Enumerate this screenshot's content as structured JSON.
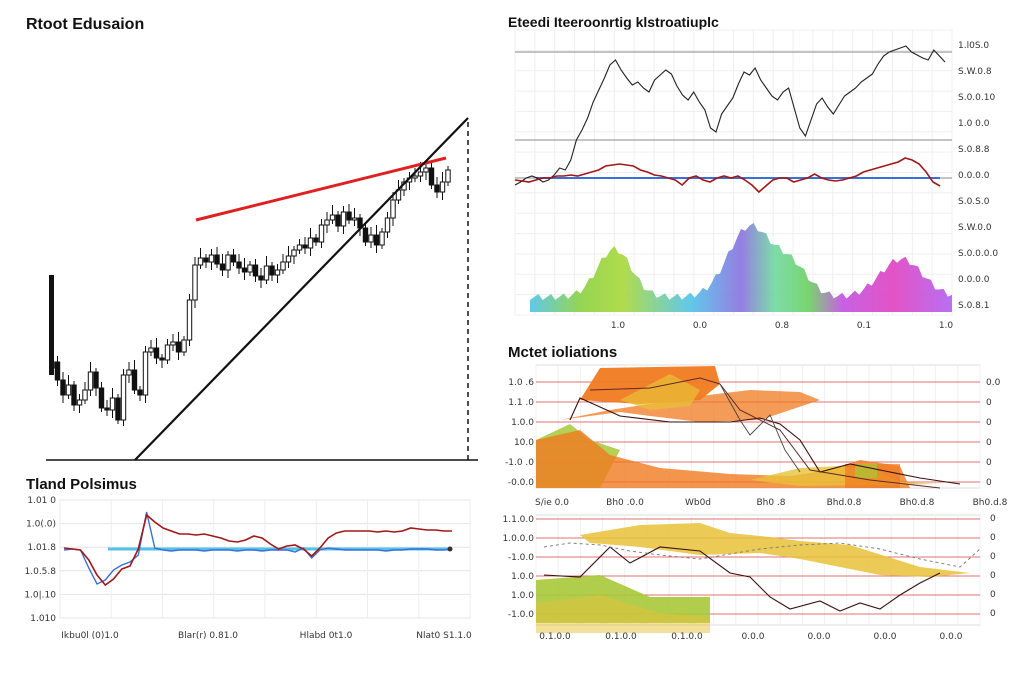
{
  "titles": {
    "top_left": "Rtoot Edusaion",
    "top_right": "Eteedi Iteeroonrtig klstroatiuplc",
    "mid_right": "Mctet ioliations",
    "bottom_left": "Tland Polsimus"
  },
  "colors": {
    "candle": "#111111",
    "trend_red": "#e02020",
    "trend_black": "#111111",
    "price_red": "#a01818",
    "price_blue": "#3a6fd8",
    "cyan": "#4fc3e8",
    "orange": "#f07a20",
    "yellow": "#e8c238",
    "green": "#a8c838",
    "grid_red": "#e07070"
  },
  "chart_data": [
    {
      "id": "main-candles",
      "type": "candlestick",
      "title": "Rtoot Edusaion",
      "closes": [
        362,
        380,
        395,
        385,
        405,
        400,
        390,
        372,
        388,
        408,
        410,
        398,
        420,
        375,
        370,
        390,
        395,
        352,
        348,
        358,
        360,
        345,
        342,
        352,
        340,
        300,
        265,
        258,
        262,
        255,
        264,
        270,
        255,
        262,
        268,
        272,
        265,
        276,
        280,
        266,
        275,
        270,
        262,
        256,
        250,
        245,
        248,
        238,
        242,
        225,
        220,
        215,
        226,
        212,
        220,
        218,
        228,
        242,
        235,
        245,
        232,
        218,
        200,
        190,
        182,
        178,
        176,
        172,
        168,
        185,
        192,
        182,
        170
      ]
    },
    {
      "id": "mid-left-lines",
      "type": "line",
      "title": "Tland Polsimus",
      "ytick_labels": [
        "1.01 0",
        "1.0(.0)",
        "1.01.8",
        "1.0.5.8",
        "1.0|.10",
        "1.010"
      ],
      "xtick_labels": [
        "Ikbu0l (0)1.0",
        "Blar(r) 0.81.0",
        "Hlabd 0t1.0",
        "Nlat0 S1.1.0"
      ],
      "red": [
        548,
        549,
        550,
        560,
        575,
        585,
        579,
        569,
        566,
        549,
        515,
        522,
        528,
        531,
        534,
        534,
        535,
        534,
        536,
        538,
        541,
        542,
        540,
        536,
        538,
        544,
        549,
        546,
        545,
        549,
        556,
        548,
        538,
        533,
        531,
        531,
        531,
        531,
        532,
        531,
        532,
        531,
        528,
        529,
        530,
        530,
        531,
        531
      ],
      "blue": [
        550,
        549,
        550,
        568,
        584,
        580,
        570,
        565,
        562,
        555,
        512,
        548,
        550,
        551,
        550,
        550,
        550,
        551,
        550,
        550,
        550,
        551,
        550,
        550,
        551,
        550,
        550,
        550,
        552,
        548,
        558,
        550,
        548,
        549,
        550,
        550,
        550,
        550,
        550,
        551,
        550,
        550,
        549,
        549,
        549,
        550,
        550,
        549
      ]
    },
    {
      "id": "top-right-composite",
      "type": "line",
      "title": "Eteedi Iteeroonrtig klstroatiuplc",
      "ytick_labels": [
        "1.l0S.0",
        "S.W.0.8",
        "S.0.0.10",
        "1.0 0.0",
        "S.0.8.8",
        "0.0.0.0",
        "S.0.S.0",
        "S.W.0.0",
        "S.0.0.0.0",
        "0.0.0.0",
        "S.0.8.1"
      ],
      "xtick_labels": [
        "1.0",
        "0.0",
        "0.8",
        "0.1",
        "1.0"
      ],
      "price": [
        185,
        182,
        178,
        176,
        178,
        182,
        180,
        175,
        168,
        170,
        160,
        140,
        130,
        118,
        102,
        90,
        78,
        65,
        60,
        70,
        78,
        85,
        82,
        88,
        92,
        80,
        75,
        70,
        74,
        86,
        95,
        100,
        92,
        102,
        110,
        128,
        132,
        114,
        106,
        98,
        84,
        72,
        75,
        68,
        80,
        88,
        96,
        100,
        92,
        88,
        108,
        128,
        136,
        120,
        104,
        98,
        107,
        114,
        105,
        96,
        92,
        88,
        82,
        78,
        74,
        64,
        56,
        52,
        50,
        48,
        46,
        52,
        55,
        58,
        60,
        50,
        56,
        62
      ],
      "indicator": [
        180,
        181,
        182,
        180,
        178,
        178,
        176,
        176,
        175,
        176,
        174,
        172,
        170,
        166,
        165,
        164,
        165,
        166,
        170,
        172,
        175,
        176,
        178,
        180,
        185,
        178,
        176,
        180,
        182,
        178,
        176,
        178,
        176,
        180,
        185,
        192,
        186,
        180,
        178,
        178,
        182,
        180,
        178,
        174,
        178,
        180,
        181,
        180,
        178,
        176,
        172,
        170,
        168,
        166,
        164,
        162,
        158,
        160,
        164,
        172,
        182,
        186
      ]
    },
    {
      "id": "mid-right-areas",
      "type": "area",
      "title": "Mctet ioliations",
      "ytick_labels": [
        "1.0 .6",
        "1.1 .0",
        "1.0.0",
        "10.0",
        "-1.0 .0",
        "-0.0.0"
      ],
      "right_tick_labels": [
        "0.0",
        "0",
        "0",
        "0",
        "0",
        "0"
      ],
      "xtick_labels": [
        "S/ie 0.0",
        "Bh0 .0.0",
        "Wb0d",
        "Bh0 .8",
        "Bhd.0.8",
        "Bh0.d.8",
        "Bh0.d.8"
      ]
    },
    {
      "id": "bottom-right-areas",
      "type": "area",
      "ytick_labels": [
        "1.1.0.0",
        "1.0.0.0",
        "-1.0.0",
        "1.0.0",
        "1.0.0",
        "-1.0.0"
      ],
      "right_tick_labels": [
        "0",
        "0",
        "0",
        "0",
        "0",
        "0"
      ],
      "xtick_labels": [
        "0.1.0.0",
        "0.1.0.0",
        "0.1.0.0",
        "0.0.0",
        "0.0.0",
        "0.0.0",
        "0.0.0"
      ]
    }
  ]
}
